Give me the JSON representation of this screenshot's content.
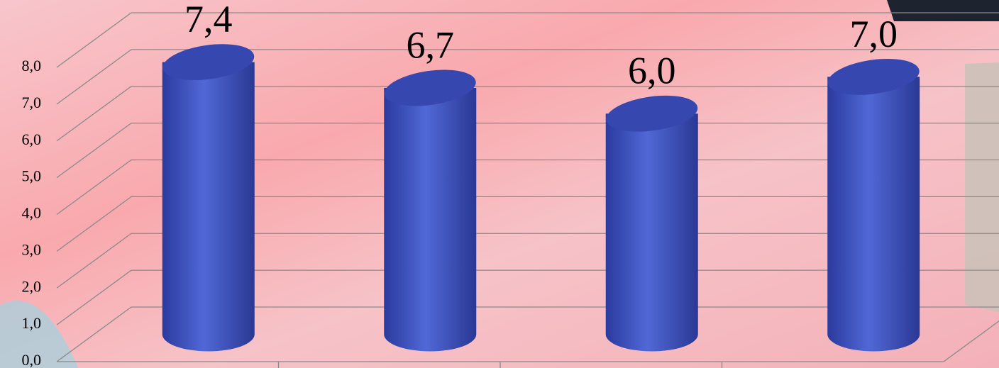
{
  "chart_data": {
    "type": "bar",
    "categories": [
      null,
      null,
      null,
      null
    ],
    "values": [
      7.4,
      6.7,
      6.0,
      7.0
    ],
    "value_labels": [
      "7,4",
      "6,7",
      "6,0",
      "7,0"
    ],
    "color": "#4a63d0",
    "ylim": [
      0,
      8
    ],
    "yticks": [
      {
        "value": 0,
        "label": "0,0"
      },
      {
        "value": 1,
        "label": "1,0"
      },
      {
        "value": 2,
        "label": "2,0"
      },
      {
        "value": 3,
        "label": "3,0"
      },
      {
        "value": 4,
        "label": "4,0"
      },
      {
        "value": 5,
        "label": "5,0"
      },
      {
        "value": 6,
        "label": "6,0"
      },
      {
        "value": 7,
        "label": "7,0"
      },
      {
        "value": 8,
        "label": "8,0"
      }
    ],
    "grid": true
  }
}
